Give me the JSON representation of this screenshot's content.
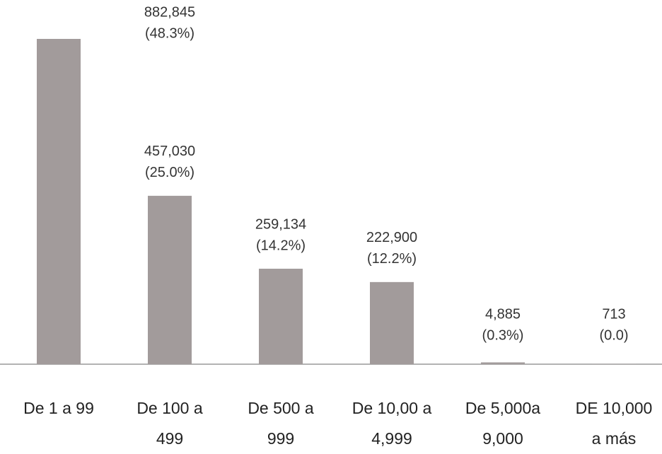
{
  "chart_data": {
    "type": "bar",
    "categories": [
      "De 1 a 99",
      "De 100 a 499",
      "De 500 a 999",
      "De 10,00 a 4,999",
      "De 5,000a 9,000",
      "DE 10,000 a más"
    ],
    "values": [
      882845,
      457030,
      259134,
      222900,
      4885,
      713
    ],
    "value_labels": [
      "882,845",
      "457,030",
      "259,134",
      "222,900",
      "4,885",
      "713"
    ],
    "percent_labels": [
      "(48.3%)",
      "(25.0%)",
      "(14.2%)",
      "(12.2%)",
      "(0.3%)",
      "(0.0)"
    ],
    "color": "#a29b9b"
  }
}
